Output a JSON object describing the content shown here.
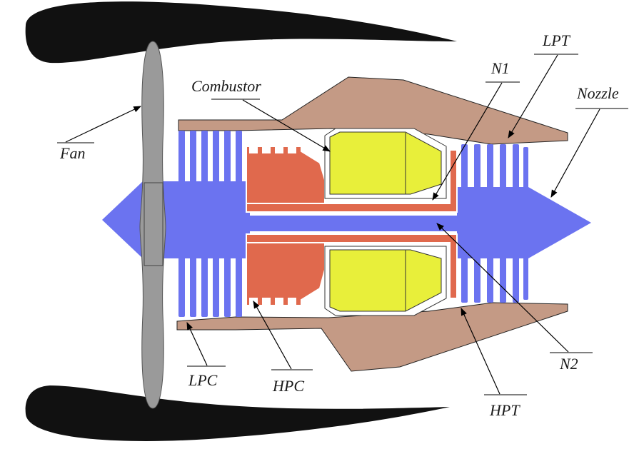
{
  "labels": {
    "fan": "Fan",
    "combustor": "Combustor",
    "n1": "N1",
    "lpt": "LPT",
    "nozzle": "Nozzle",
    "lpc": "LPC",
    "hpc": "HPC",
    "hpt": "HPT",
    "n2": "N2"
  },
  "colors": {
    "nacelle": "#111111",
    "fan": "#9a9a9a",
    "low_pressure_spool": "#6b73f0",
    "high_pressure_spool": "#e0694d",
    "casing": "#c49a85",
    "combustor": "#e8ef3a"
  }
}
